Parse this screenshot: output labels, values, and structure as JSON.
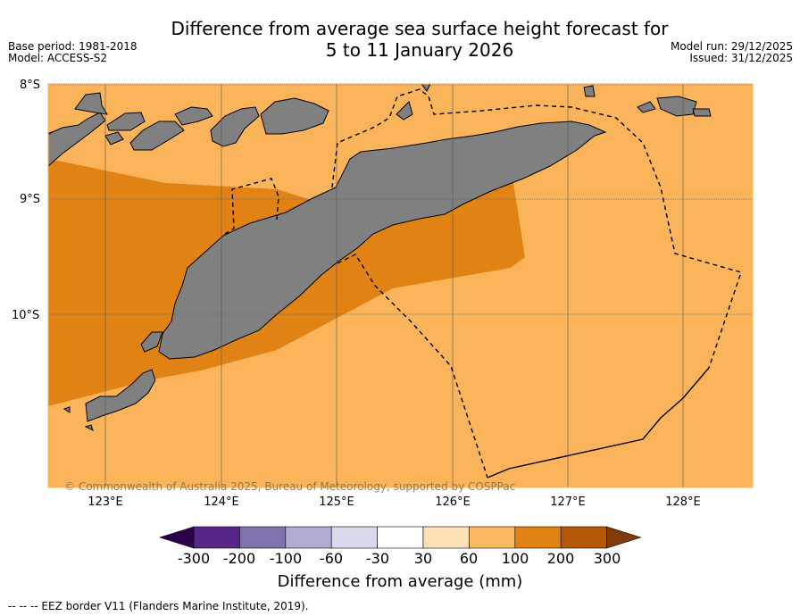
{
  "title_line1": "Difference from average sea surface height forecast for",
  "title_line2": "5 to 11 January 2026",
  "meta_left": {
    "base_period": "Base period: 1981-2018",
    "model": "Model: ACCESS-S2"
  },
  "meta_right": {
    "model_run": "Model run: 29/12/2025",
    "issued": "Issued: 31/12/2025"
  },
  "map": {
    "lat_labels": [
      "8°S",
      "9°S",
      "10°S"
    ],
    "lon_labels": [
      "123°E",
      "124°E",
      "125°E",
      "126°E",
      "127°E",
      "128°E"
    ],
    "copyright": "© Commonwealth of Australia 2025, Bureau of Meteorology, supported by COSPPac",
    "colors": {
      "land": "#808080",
      "ocean_60_100": "#fbb45a",
      "ocean_100_200": "#e08214"
    }
  },
  "colorbar": {
    "colors": [
      "#2d004b",
      "#542788",
      "#8073ac",
      "#b2abd2",
      "#d8daeb",
      "#ffffff",
      "#fee0b6",
      "#fdb863",
      "#e08214",
      "#b35806",
      "#7f3b08"
    ],
    "ticks": [
      "-300",
      "-200",
      "-100",
      "-60",
      "-30",
      "30",
      "60",
      "100",
      "200",
      "300"
    ],
    "label": "Difference from average (mm)"
  },
  "footer": "--  --  -- EEZ border V11 (Flanders Marine Institute, 2019)."
}
